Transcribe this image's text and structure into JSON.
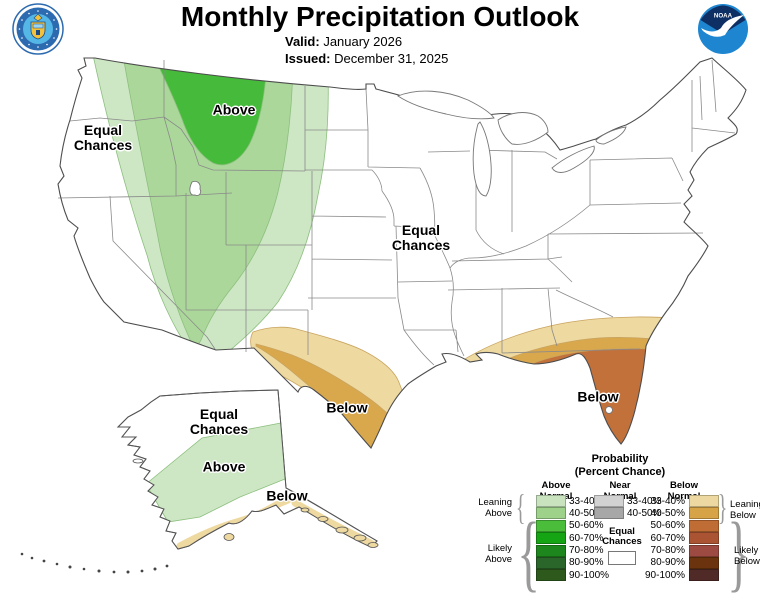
{
  "header": {
    "title": "Monthly Precipitation Outlook",
    "valid_label": "Valid:",
    "valid_value": "January 2026",
    "issued_label": "Issued:",
    "issued_value": "December 31, 2025",
    "noaa_logo_text": "NOAA"
  },
  "map_labels": {
    "west_equal_chances": "Equal\nChances",
    "northwest_above": "Above",
    "central_equal_chances": "Equal\nChances",
    "texas_below": "Below",
    "florida_below": "Below",
    "alaska_equal_chances": "Equal\nChances",
    "alaska_above": "Above",
    "alaska_below": "Below"
  },
  "map_colors": {
    "above_33_40": "#cde6c4",
    "above_40_50": "#abd89a",
    "above_50_60": "#46ba3b",
    "below_33_40": "#eed9a1",
    "below_40_50": "#d9a84d",
    "below_50_60": "#c2713a",
    "green_edge": "#8cbf7e",
    "tan_edge": "#c9a45f",
    "state_line": "#8a8a8a",
    "outline": "#4d4d4d"
  },
  "legend": {
    "title": "Probability\n(Percent Chance)",
    "above": {
      "header": "Above\nNormal",
      "rows": [
        {
          "range": "33-40%",
          "color": "#c9e3bf"
        },
        {
          "range": "40-50%",
          "color": "#9ed28b"
        },
        {
          "range": "50-60%",
          "color": "#4abd3b"
        },
        {
          "range": "60-70%",
          "color": "#14a414"
        },
        {
          "range": "70-80%",
          "color": "#1d871d"
        },
        {
          "range": "80-90%",
          "color": "#2a652a"
        },
        {
          "range": "90-100%",
          "color": "#2d5a1c"
        }
      ]
    },
    "near": {
      "header": "Near\nNormal",
      "rows": [
        {
          "range": "33-40%",
          "color": "#d2d2d2"
        },
        {
          "range": "40-50%",
          "color": "#a7a7a7"
        }
      ],
      "equal_chances_label": "Equal\nChances",
      "equal_chances_color": "#ffffff"
    },
    "below": {
      "header": "Below\nNormal",
      "rows": [
        {
          "range": "33-40%",
          "color": "#eed8a1"
        },
        {
          "range": "40-50%",
          "color": "#d7a347"
        },
        {
          "range": "50-60%",
          "color": "#c06d35"
        },
        {
          "range": "60-70%",
          "color": "#ab5434"
        },
        {
          "range": "70-80%",
          "color": "#9d4b42"
        },
        {
          "range": "80-90%",
          "color": "#6c340e"
        },
        {
          "range": "90-100%",
          "color": "#4f2a27"
        }
      ]
    },
    "brace_labels": {
      "leaning_above": "Leaning\nAbove",
      "likely_above": "Likely\nAbove",
      "leaning_below": "Leaning\nBelow",
      "likely_below": "Likely\nBelow"
    }
  }
}
